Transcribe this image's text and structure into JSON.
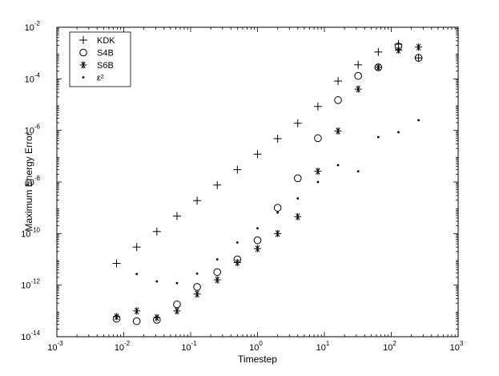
{
  "chart_data": {
    "type": "scatter",
    "title": "",
    "xlabel": "Timestep",
    "ylabel": "Maximum Energy Error",
    "xscale": "log",
    "yscale": "log",
    "xlim": [
      0.001,
      1000
    ],
    "ylim": [
      1e-14,
      0.01
    ],
    "grid": false,
    "legend_position": "top-left",
    "x_ticks": [
      {
        "value": 0.001,
        "base": "10",
        "exp": "-3"
      },
      {
        "value": 0.01,
        "base": "10",
        "exp": "-2"
      },
      {
        "value": 0.1,
        "base": "10",
        "exp": "-1"
      },
      {
        "value": 1,
        "base": "10",
        "exp": "0"
      },
      {
        "value": 10,
        "base": "10",
        "exp": "1"
      },
      {
        "value": 100,
        "base": "10",
        "exp": "2"
      },
      {
        "value": 1000,
        "base": "10",
        "exp": "3"
      }
    ],
    "y_ticks": [
      {
        "value": 1e-14,
        "base": "10",
        "exp": "-14"
      },
      {
        "value": 1e-12,
        "base": "10",
        "exp": "-12"
      },
      {
        "value": 1e-10,
        "base": "10",
        "exp": "-10"
      },
      {
        "value": 1e-08,
        "base": "10",
        "exp": "-8"
      },
      {
        "value": 1e-06,
        "base": "10",
        "exp": "-6"
      },
      {
        "value": 0.0001,
        "base": "10",
        "exp": "-4"
      },
      {
        "value": 0.01,
        "base": "10",
        "exp": "-2"
      }
    ],
    "series": [
      {
        "name": "KDK",
        "marker": "plus",
        "x": [
          0.0078125,
          0.015625,
          0.03125,
          0.0625,
          0.125,
          0.25,
          0.5,
          1,
          2,
          4,
          8,
          16,
          32,
          64,
          128,
          256
        ],
        "y": [
          7e-12,
          3e-11,
          1.2e-10,
          4.8e-10,
          1.9e-09,
          7.6e-09,
          3e-08,
          1.2e-07,
          4.8e-07,
          1.9e-06,
          8.5e-06,
          8.2e-05,
          0.00035,
          0.0011,
          0.0022,
          0.00065
        ]
      },
      {
        "name": "S4B",
        "marker": "circle",
        "x": [
          0.0078125,
          0.015625,
          0.03125,
          0.0625,
          0.125,
          0.25,
          0.5,
          1,
          2,
          4,
          8,
          16,
          32,
          64,
          128,
          256
        ],
        "y": [
          5e-14,
          4e-14,
          4.5e-14,
          1.8e-13,
          8.5e-13,
          3.2e-12,
          1e-11,
          5.5e-11,
          1e-09,
          1.4e-08,
          5e-07,
          1.5e-05,
          0.00013,
          0.00028,
          0.0018,
          0.00065
        ]
      },
      {
        "name": "S6B",
        "marker": "asterisk",
        "x": [
          0.0078125,
          0.015625,
          0.03125,
          0.0625,
          0.125,
          0.25,
          0.5,
          1,
          2,
          4,
          8,
          16,
          32,
          64,
          128,
          256
        ],
        "y": [
          6e-14,
          1e-13,
          5.5e-14,
          1e-13,
          4.5e-13,
          1.6e-12,
          7.5e-12,
          2.6e-11,
          1e-10,
          4.5e-10,
          2.6e-08,
          9.5e-07,
          4e-05,
          0.00028,
          0.0013,
          0.0017
        ]
      },
      {
        "name": "ε²",
        "marker": "dot",
        "x": [
          0.015625,
          0.03125,
          0.0625,
          0.125,
          0.25,
          0.5,
          1,
          2,
          4,
          8,
          16,
          32,
          64,
          128,
          256
        ],
        "y": [
          2.7e-12,
          1.4e-12,
          1.2e-12,
          2.8e-12,
          1e-11,
          4.5e-11,
          1.6e-10,
          6.5e-10,
          2.3e-09,
          1e-08,
          4.5e-08,
          2.6e-08,
          5.5e-07,
          8.5e-07,
          2.5e-06
        ]
      }
    ]
  }
}
